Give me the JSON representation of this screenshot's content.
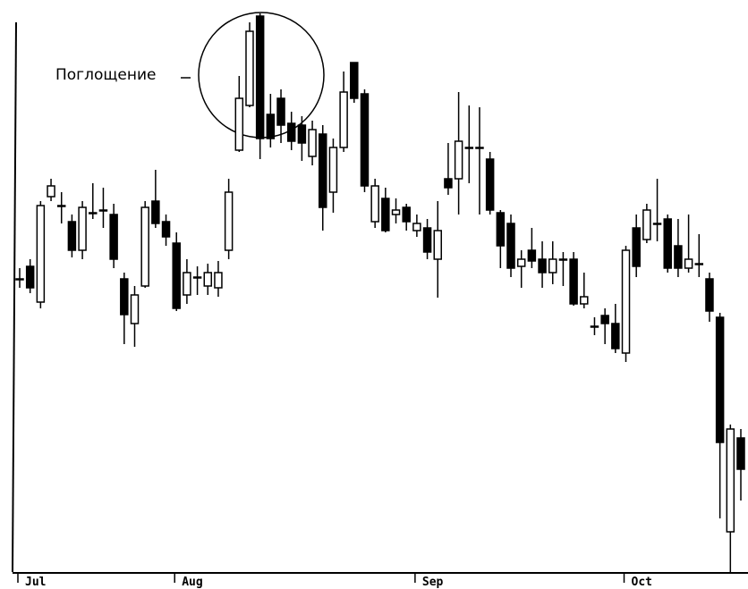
{
  "chart_data": {
    "type": "candlestick",
    "annotation": "Поглощение",
    "categories": [
      "Jul",
      null,
      null,
      null,
      null,
      null,
      null,
      null,
      null,
      null,
      null,
      null,
      null,
      null,
      null,
      "Aug",
      null,
      null,
      null,
      null,
      null,
      null,
      null,
      null,
      null,
      null,
      null,
      null,
      null,
      null,
      null,
      null,
      null,
      null,
      null,
      null,
      null,
      null,
      "Sep",
      null,
      null,
      null,
      null,
      null,
      null,
      null,
      null,
      null,
      null,
      null,
      null,
      null,
      null,
      null,
      null,
      null,
      null,
      null,
      "Oct",
      null,
      null,
      null,
      null,
      null,
      null,
      null,
      null,
      null,
      null,
      null
    ],
    "open": [
      328,
      342,
      302,
      420,
      410,
      392,
      360,
      402,
      405,
      400,
      328,
      278,
      320,
      415,
      392,
      368,
      310,
      330,
      320,
      318,
      360,
      472,
      522,
      622,
      512,
      530,
      502,
      500,
      465,
      490,
      425,
      475,
      570,
      535,
      392,
      418,
      400,
      408,
      382,
      385,
      350,
      440,
      440,
      475,
      475,
      462,
      402,
      390,
      342,
      360,
      350,
      335,
      350,
      350,
      300,
      275,
      287,
      278,
      245,
      385,
      372,
      390,
      395,
      365,
      340,
      345,
      328,
      285,
      45,
      150
    ],
    "high": [
      340,
      350,
      415,
      440,
      425,
      400,
      415,
      435,
      430,
      412,
      335,
      320,
      415,
      450,
      400,
      380,
      350,
      342,
      345,
      348,
      440,
      555,
      615,
      625,
      535,
      540,
      515,
      510,
      505,
      500,
      485,
      560,
      570,
      540,
      440,
      430,
      418,
      412,
      400,
      395,
      415,
      480,
      537,
      522,
      520,
      470,
      405,
      400,
      360,
      385,
      370,
      370,
      358,
      358,
      335,
      285,
      295,
      300,
      365,
      400,
      412,
      440,
      400,
      395,
      400,
      378,
      335,
      290,
      165,
      160
    ],
    "low": [
      318,
      312,
      295,
      415,
      390,
      352,
      350,
      395,
      385,
      340,
      255,
      252,
      318,
      385,
      365,
      292,
      300,
      310,
      310,
      308,
      350,
      470,
      520,
      462,
      475,
      480,
      472,
      460,
      455,
      382,
      402,
      470,
      525,
      425,
      385,
      380,
      390,
      382,
      375,
      350,
      307,
      422,
      400,
      435,
      400,
      400,
      340,
      330,
      318,
      340,
      318,
      322,
      320,
      298,
      295,
      265,
      255,
      245,
      235,
      330,
      368,
      370,
      335,
      330,
      335,
      330,
      280,
      60,
      0,
      80
    ],
    "close": [
      328,
      318,
      410,
      432,
      410,
      360,
      408,
      402,
      405,
      350,
      288,
      310,
      408,
      390,
      375,
      295,
      335,
      330,
      335,
      335,
      425,
      530,
      605,
      485,
      485,
      500,
      482,
      480,
      495,
      408,
      475,
      537,
      530,
      432,
      432,
      382,
      405,
      392,
      390,
      358,
      382,
      430,
      482,
      475,
      475,
      405,
      365,
      340,
      350,
      348,
      335,
      350,
      350,
      300,
      308,
      275,
      278,
      250,
      360,
      342,
      405,
      390,
      340,
      340,
      350,
      345,
      292,
      145,
      160,
      115
    ],
    "color": "#000000",
    "ylim": [
      0,
      625
    ]
  }
}
